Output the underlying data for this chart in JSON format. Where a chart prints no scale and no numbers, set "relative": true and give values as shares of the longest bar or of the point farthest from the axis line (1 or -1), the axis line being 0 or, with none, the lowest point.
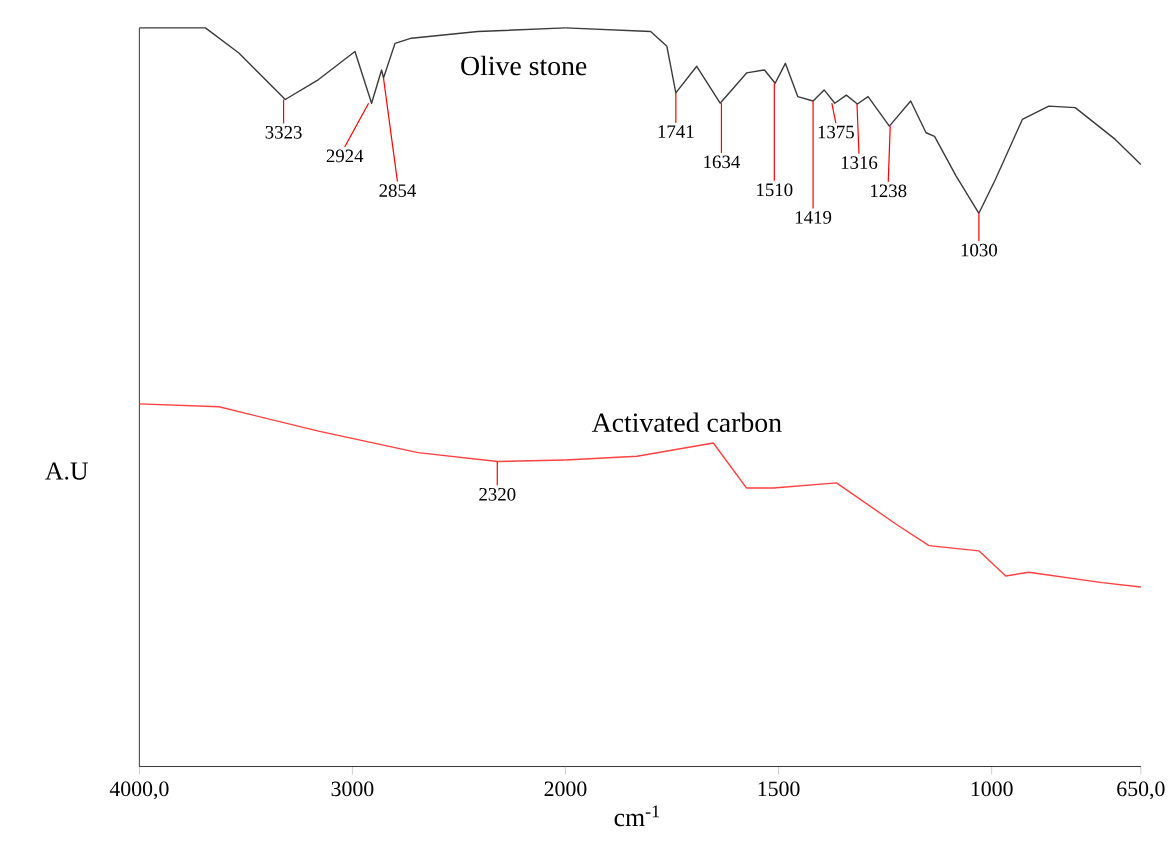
{
  "chart_data": [
    {
      "type": "line",
      "relative": true,
      "ylabel": "A.U",
      "xlim": [
        4000,
        2000
      ],
      "xticks": [
        {
          "value": 4000,
          "label": "4000,0"
        },
        3000,
        2000
      ],
      "series": [
        {
          "name": "Olive stone",
          "color": "#3a3a3a",
          "x": [
            4000,
            3690,
            3533,
            3315,
            3159,
            2988,
            2910,
            2863,
            2854,
            2800,
            2723,
            2411,
            2000
          ],
          "values": [
            1.0,
            1.0,
            0.966,
            0.903,
            0.93,
            0.968,
            0.898,
            0.943,
            0.932,
            0.979,
            0.986,
            0.995,
            1.0
          ]
        },
        {
          "color": "#ff4040",
          "x": [
            4000,
            3626,
            3159,
            2692,
            2318,
            2000
          ],
          "values": [
            0.491,
            0.487,
            0.454,
            0.425,
            0.413,
            0.415
          ]
        }
      ],
      "annotations": [
        {
          "text": "3323",
          "x": 3323,
          "y": 0.903
        },
        {
          "text": "2924",
          "x": 2924,
          "y": 0.898
        },
        {
          "text": "2854",
          "x": 2854,
          "y": 0.932
        },
        {
          "text": "2320",
          "x": 2320,
          "y": 0.413
        }
      ]
    },
    {
      "type": "line",
      "relative": true,
      "xlabel": "cm$^{-1}$",
      "xlim": [
        2000,
        650
      ],
      "xticks": [
        1500,
        1000,
        {
          "value": 650,
          "label": "650,0"
        }
      ],
      "series": [
        {
          "color": "#3a3a3a",
          "x": [
            2000,
            1800,
            1762,
            1741,
            1692,
            1637,
            1575,
            1533,
            1508,
            1484,
            1455,
            1419,
            1393,
            1368,
            1341,
            1315,
            1290,
            1240,
            1190,
            1154,
            1134,
            1084,
            1030,
            991,
            928,
            866,
            804,
            710,
            650
          ],
          "values": [
            1.0,
            0.995,
            0.975,
            0.912,
            0.948,
            0.898,
            0.939,
            0.943,
            0.925,
            0.952,
            0.907,
            0.901,
            0.916,
            0.898,
            0.909,
            0.897,
            0.907,
            0.867,
            0.901,
            0.858,
            0.853,
            0.8,
            0.749,
            0.795,
            0.876,
            0.894,
            0.892,
            0.849,
            0.815
          ]
        },
        {
          "name": "Activated carbon",
          "color": "#ff4040",
          "x": [
            2000,
            1832,
            1653,
            1575,
            1512,
            1364,
            1224,
            1147,
            1030,
            967,
            913,
            741,
            650
          ],
          "values": [
            0.415,
            0.42,
            0.438,
            0.377,
            0.377,
            0.384,
            0.328,
            0.299,
            0.292,
            0.258,
            0.263,
            0.249,
            0.243
          ]
        }
      ],
      "annotations": [
        {
          "text": "1741",
          "x": 1741,
          "y": 0.912
        },
        {
          "text": "1634",
          "x": 1634,
          "y": 0.898
        },
        {
          "text": "1510",
          "x": 1510,
          "y": 0.925
        },
        {
          "text": "1419",
          "x": 1419,
          "y": 0.901
        },
        {
          "text": "1375",
          "x": 1375,
          "y": 0.898
        },
        {
          "text": "1316",
          "x": 1316,
          "y": 0.897
        },
        {
          "text": "1238",
          "x": 1238,
          "y": 0.867
        },
        {
          "text": "1030",
          "x": 1030,
          "y": 0.749
        }
      ]
    }
  ]
}
